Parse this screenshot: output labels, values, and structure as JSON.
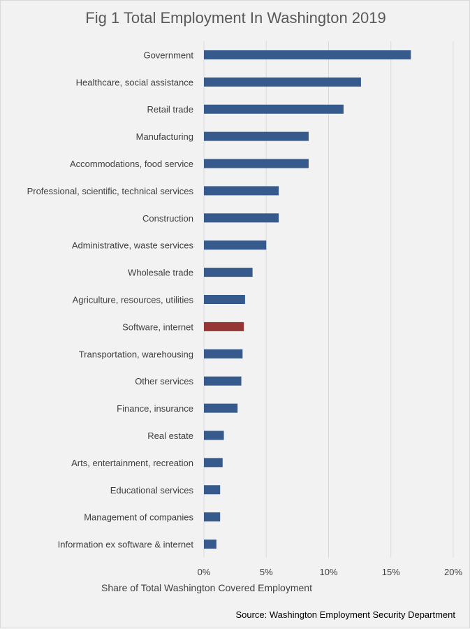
{
  "chart_data": {
    "type": "bar",
    "orientation": "horizontal",
    "title": "Fig 1 Total Employment In Washington 2019",
    "xlabel": "Share of Total Washington Covered Employment",
    "source": "Source: Washington Employment Security Department",
    "xlim": [
      0,
      20
    ],
    "xticks": [
      "0%",
      "5%",
      "10%",
      "15%",
      "20%"
    ],
    "grid": "vertical",
    "legend": "none",
    "colors": {
      "default": "#375a8c",
      "highlight": "#963634",
      "grid": "#d9d9d9"
    },
    "highlight": "Software, internet",
    "categories": [
      "Government",
      "Healthcare, social assistance",
      "Retail trade",
      "Manufacturing",
      "Accommodations, food service",
      "Professional, scientific, technical services",
      "Construction",
      "Administrative, waste services",
      "Wholesale trade",
      "Agriculture, resources, utilities",
      "Software, internet",
      "Transportation, warehousing",
      "Other services",
      "Finance, insurance",
      "Real estate",
      "Arts, entertainment, recreation",
      "Educational services",
      "Management of companies",
      "Information ex software & internet"
    ],
    "values": [
      16.6,
      12.6,
      11.2,
      8.4,
      8.4,
      6.0,
      6.0,
      5.0,
      3.9,
      3.3,
      3.2,
      3.1,
      3.0,
      2.7,
      1.6,
      1.5,
      1.3,
      1.3,
      1.0
    ]
  }
}
